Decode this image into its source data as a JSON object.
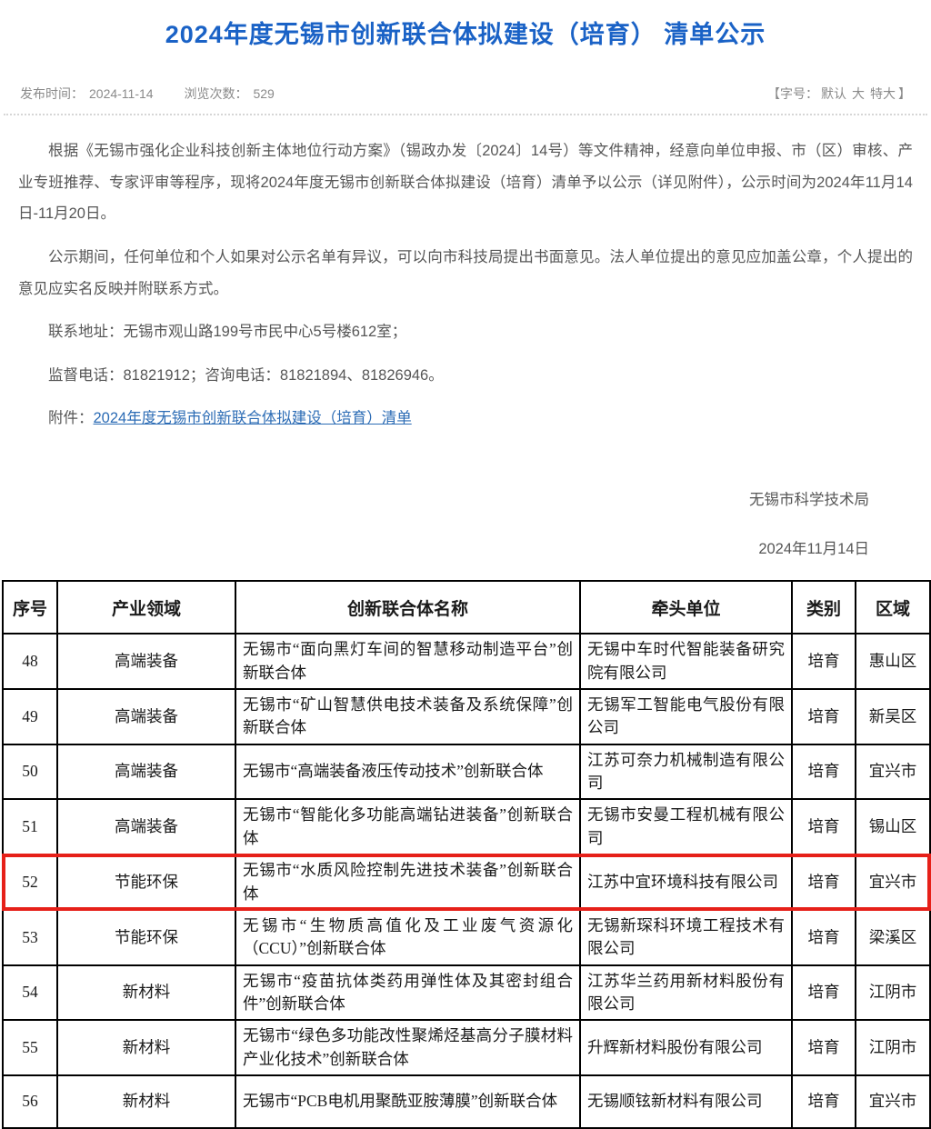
{
  "page": {
    "title": "2024年度无锡市创新联合体拟建设（培育） 清单公示",
    "meta": {
      "publish_label": "发布时间：",
      "publish_date": "2024-11-14",
      "views_label": "浏览次数：",
      "views_count": "529",
      "fontsize_prefix": "【字号：",
      "fontsize_options": {
        "default": "默认",
        "large": "大",
        "xlarge": "特大"
      },
      "fontsize_suffix": "】"
    },
    "paragraphs": {
      "p1": "根据《无锡市强化企业科技创新主体地位行动方案》（锡政办发〔2024〕14号）等文件精神，经意向单位申报、市（区）审核、产业专班推荐、专家评审等程序，现将2024年度无锡市创新联合体拟建设（培育）清单予以公示（详见附件），公示时间为2024年11月14日-11月20日。",
      "p2": "公示期间，任何单位和个人如果对公示名单有异议，可以向市科技局提出书面意见。法人单位提出的意见应加盖公章，个人提出的意见应实名反映并附联系方式。",
      "address": "联系地址：无锡市观山路199号市民中心5号楼612室；",
      "phones": "监督电话：81821912；咨询电话：81821894、81826946。",
      "attachment_label": "附件：",
      "attachment_link": "2024年度无锡市创新联合体拟建设（培育）清单"
    },
    "signature": {
      "org": "无锡市科学技术局",
      "date": "2024年11月14日"
    }
  },
  "table": {
    "headers": [
      "序号",
      "产业领域",
      "创新联合体名称",
      "牵头单位",
      "类别",
      "区域"
    ],
    "rows": [
      {
        "no": "48",
        "field": "高端装备",
        "name": "无锡市“面向黑灯车间的智慧移动制造平台”创新联合体",
        "leader": "无锡中车时代智能装备研究院有限公司",
        "category": "培育",
        "region": "惠山区",
        "highlighted": false
      },
      {
        "no": "49",
        "field": "高端装备",
        "name": "无锡市“矿山智慧供电技术装备及系统保障”创新联合体",
        "leader": "无锡军工智能电气股份有限公司",
        "category": "培育",
        "region": "新吴区",
        "highlighted": false
      },
      {
        "no": "50",
        "field": "高端装备",
        "name": "无锡市“高端装备液压传动技术”创新联合体",
        "leader": "江苏可奈力机械制造有限公司",
        "category": "培育",
        "region": "宜兴市",
        "highlighted": false
      },
      {
        "no": "51",
        "field": "高端装备",
        "name": "无锡市“智能化多功能高端钻进装备”创新联合体",
        "leader": "无锡市安曼工程机械有限公司",
        "category": "培育",
        "region": "锡山区",
        "highlighted": false
      },
      {
        "no": "52",
        "field": "节能环保",
        "name": "无锡市“水质风险控制先进技术装备”创新联合体",
        "leader": "江苏中宜环境科技有限公司",
        "category": "培育",
        "region": "宜兴市",
        "highlighted": true
      },
      {
        "no": "53",
        "field": "节能环保",
        "name": "无锡市“生物质高值化及工业废气资源化（CCU）”创新联合体",
        "leader": "无锡新琛科环境工程技术有限公司",
        "category": "培育",
        "region": "梁溪区",
        "highlighted": false
      },
      {
        "no": "54",
        "field": "新材料",
        "name": "无锡市“疫苗抗体类药用弹性体及其密封组合件”创新联合体",
        "leader": "江苏华兰药用新材料股份有限公司",
        "category": "培育",
        "region": "江阴市",
        "highlighted": false
      },
      {
        "no": "55",
        "field": "新材料",
        "name": "无锡市“绿色多功能改性聚烯烃基高分子膜材料产业化技术”创新联合体",
        "leader": "升辉新材料股份有限公司",
        "category": "培育",
        "region": "江阴市",
        "highlighted": false
      },
      {
        "no": "56",
        "field": "新材料",
        "name": "无锡市“PCB电机用聚酰亚胺薄膜”创新联合体",
        "leader": "无锡顺铉新材料有限公司",
        "category": "培育",
        "region": "宜兴市",
        "highlighted": false
      }
    ]
  },
  "colors": {
    "title_blue": "#1a62c6",
    "link_blue": "#2c6cb5",
    "highlight_red": "#e62019"
  }
}
